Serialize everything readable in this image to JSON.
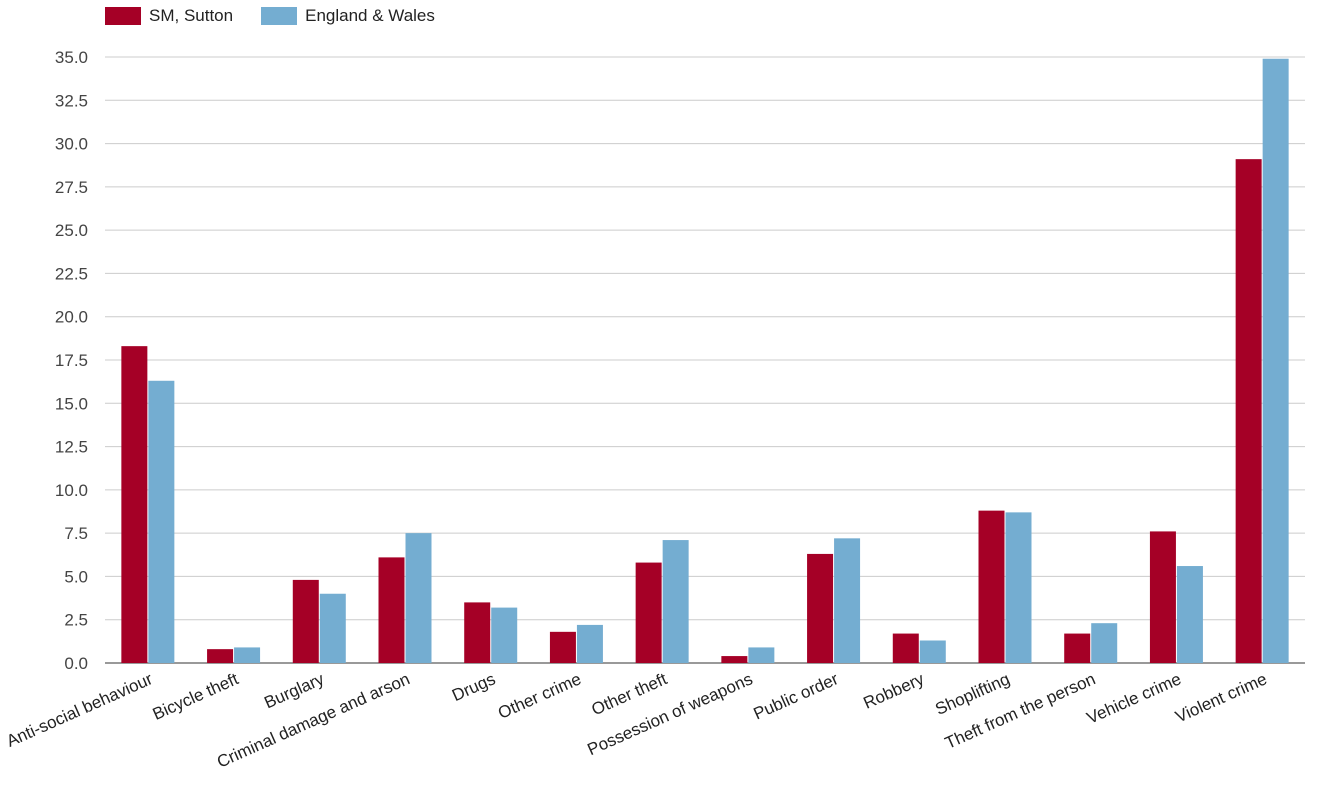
{
  "legend": {
    "series_a": "SM, Sutton",
    "series_b": "England & Wales"
  },
  "colors": {
    "series_a": "#a50026",
    "series_b": "#74add1",
    "grid": "#cccccc",
    "axis": "#333333"
  },
  "chart_data": {
    "type": "bar",
    "categories": [
      "Anti-social behaviour",
      "Bicycle theft",
      "Burglary",
      "Criminal damage and arson",
      "Drugs",
      "Other crime",
      "Other theft",
      "Possession of weapons",
      "Public order",
      "Robbery",
      "Shoplifting",
      "Theft from the person",
      "Vehicle crime",
      "Violent crime"
    ],
    "series": [
      {
        "name": "SM, Sutton",
        "values": [
          18.3,
          0.8,
          4.8,
          6.1,
          3.5,
          1.8,
          5.8,
          0.4,
          6.3,
          1.7,
          8.8,
          1.7,
          7.6,
          29.1
        ]
      },
      {
        "name": "England & Wales",
        "values": [
          16.3,
          0.9,
          4.0,
          7.5,
          3.2,
          2.2,
          7.1,
          0.9,
          7.2,
          1.3,
          8.7,
          2.3,
          5.6,
          34.9
        ]
      }
    ],
    "yticks": [
      "0.0",
      "2.5",
      "5.0",
      "7.5",
      "10.0",
      "12.5",
      "15.0",
      "17.5",
      "20.0",
      "22.5",
      "25.0",
      "27.5",
      "30.0",
      "32.5",
      "35.0"
    ],
    "ylim": [
      0,
      35
    ],
    "grid": true,
    "legend_position": "top-left"
  }
}
